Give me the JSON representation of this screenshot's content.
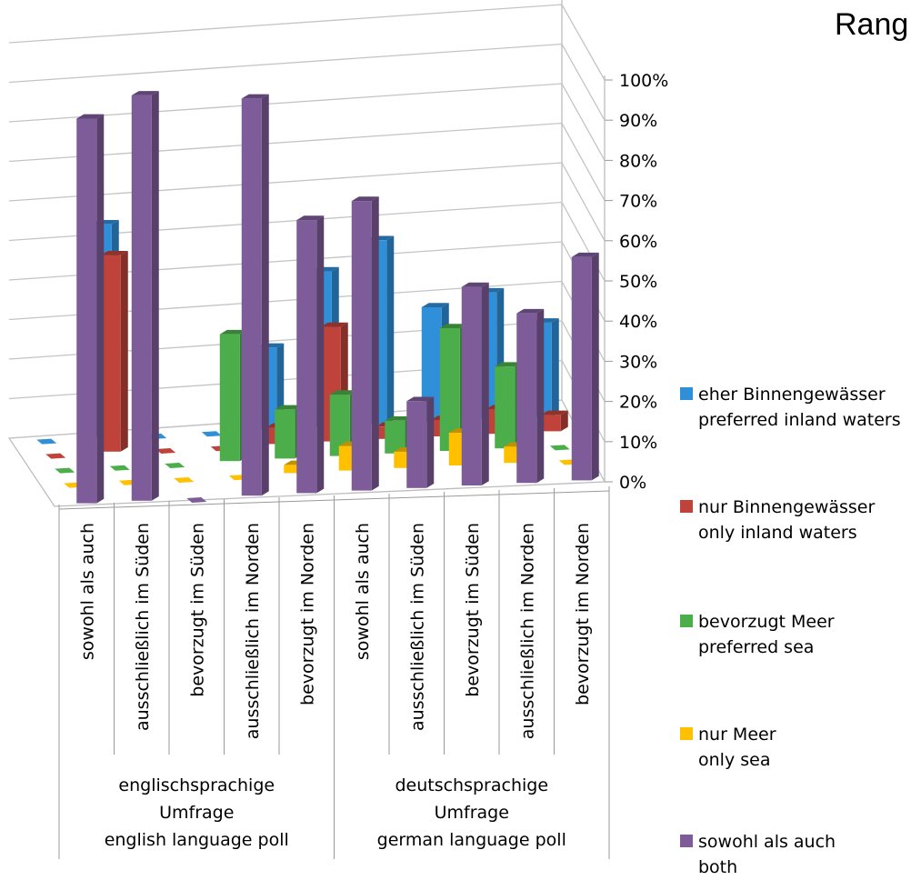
{
  "chart_data": {
    "type": "bar",
    "title": "Rang",
    "y_ticks": [
      "0%",
      "10%",
      "20%",
      "30%",
      "40%",
      "50%",
      "60%",
      "70%",
      "80%",
      "90%",
      "100%"
    ],
    "ylim": [
      0,
      100
    ],
    "categories": [
      "sowohl als auch",
      "ausschließlich im Süden",
      "bevorzugt im Süden",
      "ausschließlich im Norden",
      "bevorzugt im Norden",
      "sowohl als auch",
      "ausschließlich im Süden",
      "bevorzugt im Süden",
      "ausschließlich im Norden",
      "bevorzugt im Norden"
    ],
    "groups": [
      {
        "lines": [
          "englischsprachige",
          "Umfrage",
          "english language poll"
        ]
      },
      {
        "lines": [
          "deutschsprachige",
          "Umfrage",
          "german language poll"
        ]
      }
    ],
    "series": [
      {
        "name": "eher Binnengewässer preferred inland waters",
        "name_lines": [
          "eher Binnengewässer",
          "preferred inland waters"
        ],
        "color": "#2F8FD8",
        "values": [
          0,
          52,
          0,
          0,
          20,
          38,
          45,
          28,
          31,
          23
        ]
      },
      {
        "name": "nur Binnengewässer only inland waters",
        "name_lines": [
          "nur Binnengewässer",
          "only inland waters"
        ],
        "color": "#C0433B",
        "values": [
          0,
          48,
          0,
          0,
          4,
          28,
          3,
          4,
          6,
          4
        ]
      },
      {
        "name": "bevorzugt Meer preferred sea",
        "name_lines": [
          "bevorzugt Meer",
          "preferred sea"
        ],
        "color": "#4BAE4A",
        "values": [
          0,
          0,
          0,
          31,
          12,
          15,
          8,
          30,
          20,
          0
        ]
      },
      {
        "name": "nur Meer only sea",
        "name_lines": [
          "nur Meer",
          "only sea"
        ],
        "color": "#FFC000",
        "values": [
          0,
          0,
          0,
          0,
          2,
          6,
          4,
          8,
          4,
          0
        ]
      },
      {
        "name": "sowohl als auch both",
        "name_lines": [
          "sowohl als auch",
          "both"
        ],
        "color": "#7D5C99",
        "values": [
          93,
          98,
          0,
          96,
          66,
          70,
          21,
          48,
          41,
          54
        ]
      }
    ],
    "grid": true,
    "legend_position": "right"
  }
}
